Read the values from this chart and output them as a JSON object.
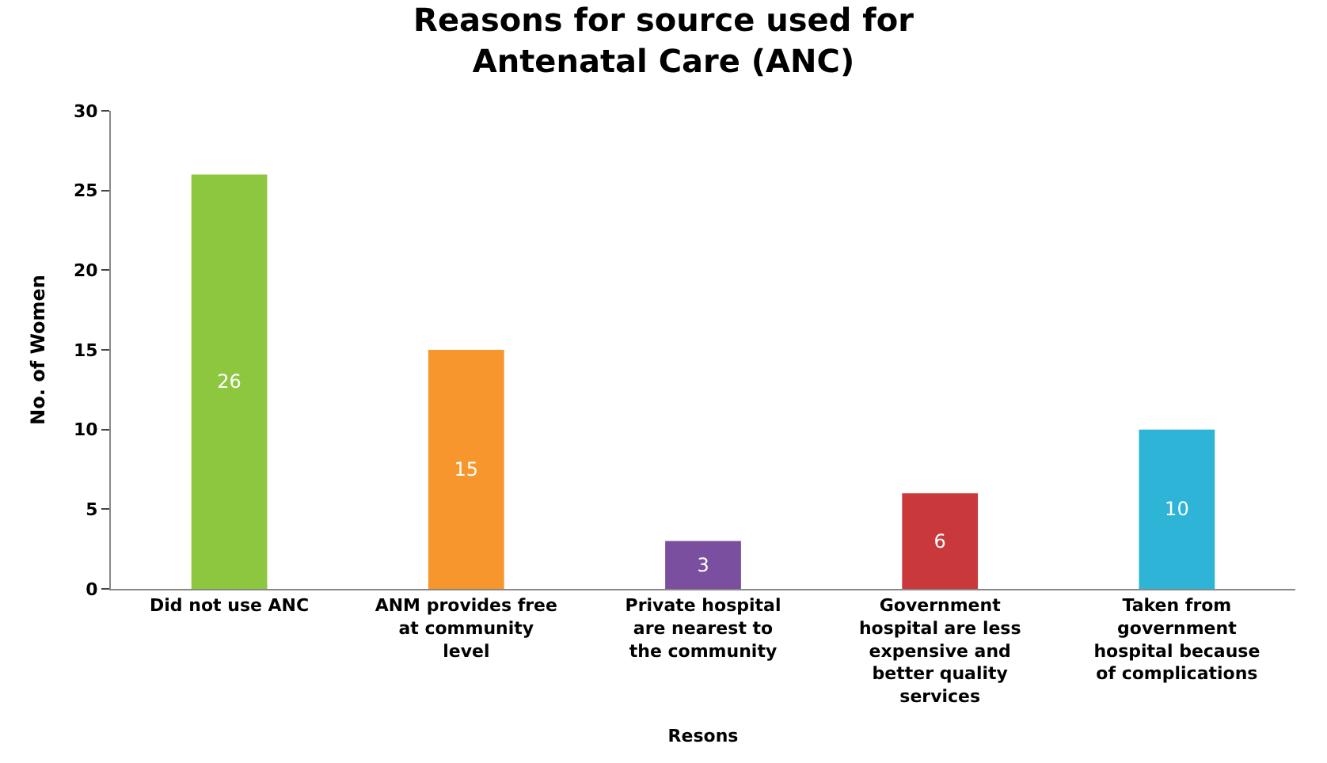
{
  "chart_data": {
    "type": "bar",
    "title": "Reasons for source used for Antenatal Care (ANC)",
    "xlabel": "Resons",
    "ylabel": "No. of Women",
    "categories": [
      "Did not use ANC",
      "ANM provides free at community level",
      "Private hospital are nearest to the community",
      "Government hospital are less expensive and better quality services",
      "Taken from government hospital because of complications"
    ],
    "values": [
      26,
      15,
      3,
      6,
      10
    ],
    "colors": [
      "#8dc63f",
      "#f7962d",
      "#7b4fa0",
      "#c9393b",
      "#2eb4d6"
    ],
    "ylim": [
      0,
      30
    ],
    "yticks": [
      0,
      5,
      10,
      15,
      20,
      25,
      30
    ],
    "data_labels": true
  }
}
